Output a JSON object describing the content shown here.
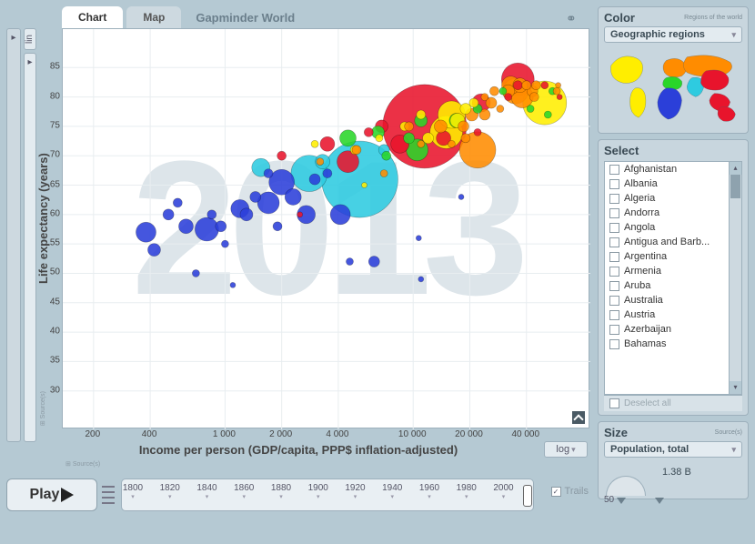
{
  "tabs": {
    "chart": "Chart",
    "map": "Map",
    "brand": "Gapminder World"
  },
  "year": "2013",
  "axes": {
    "x_label": "Income per person (GDP/capita, PPP$ inflation-adjusted)",
    "y_label": "Life expectancy (years)",
    "x_scale": "log",
    "y_scale": "lin",
    "source_label": "Source(s)",
    "x_ticks": [
      200,
      400,
      1000,
      2000,
      4000,
      10000,
      20000,
      40000
    ],
    "x_tick_labels": [
      "200",
      "400",
      "1 000",
      "2 000",
      "4 000",
      "10 000",
      "20 000",
      "40 000"
    ],
    "y_ticks": [
      30,
      35,
      40,
      45,
      50,
      55,
      60,
      65,
      70,
      75,
      80,
      85
    ],
    "xlim": [
      150,
      80000
    ],
    "ylim": [
      25,
      90
    ],
    "grid_color": "#e8edf0"
  },
  "region_colors": {
    "sub_saharan_africa": "#2b3fd9",
    "south_asia": "#2ecbe0",
    "east_asia_pacific": "#e8142c",
    "middle_east_north_africa": "#29d629",
    "america": "#ffee00",
    "europe_central_asia": "#ff8c00"
  },
  "bubbles": [
    {
      "x": 380,
      "y": 57,
      "r": 11,
      "c": "#2b3fd9"
    },
    {
      "x": 420,
      "y": 54,
      "r": 7,
      "c": "#2b3fd9"
    },
    {
      "x": 500,
      "y": 60,
      "r": 6,
      "c": "#2b3fd9"
    },
    {
      "x": 560,
      "y": 62,
      "r": 5,
      "c": "#2b3fd9"
    },
    {
      "x": 620,
      "y": 58,
      "r": 8,
      "c": "#2b3fd9"
    },
    {
      "x": 700,
      "y": 50,
      "r": 4,
      "c": "#2b3fd9"
    },
    {
      "x": 800,
      "y": 57.5,
      "r": 13,
      "c": "#2b3fd9"
    },
    {
      "x": 850,
      "y": 60,
      "r": 5,
      "c": "#2b3fd9"
    },
    {
      "x": 950,
      "y": 58,
      "r": 6,
      "c": "#2b3fd9"
    },
    {
      "x": 1000,
      "y": 55,
      "r": 4,
      "c": "#2b3fd9"
    },
    {
      "x": 1100,
      "y": 48,
      "r": 3,
      "c": "#2b3fd9"
    },
    {
      "x": 1200,
      "y": 61,
      "r": 10,
      "c": "#2b3fd9"
    },
    {
      "x": 1300,
      "y": 60,
      "r": 7,
      "c": "#2b3fd9"
    },
    {
      "x": 1450,
      "y": 63,
      "r": 6,
      "c": "#2b3fd9"
    },
    {
      "x": 1700,
      "y": 62,
      "r": 12,
      "c": "#2b3fd9"
    },
    {
      "x": 1700,
      "y": 67,
      "r": 5,
      "c": "#2b3fd9"
    },
    {
      "x": 1900,
      "y": 58,
      "r": 5,
      "c": "#2b3fd9"
    },
    {
      "x": 2000,
      "y": 65.5,
      "r": 14,
      "c": "#2b3fd9"
    },
    {
      "x": 2300,
      "y": 63,
      "r": 9,
      "c": "#2b3fd9"
    },
    {
      "x": 2700,
      "y": 60,
      "r": 10,
      "c": "#2b3fd9"
    },
    {
      "x": 3000,
      "y": 66,
      "r": 6,
      "c": "#2b3fd9"
    },
    {
      "x": 3500,
      "y": 67,
      "r": 5,
      "c": "#2b3fd9"
    },
    {
      "x": 4100,
      "y": 60,
      "r": 11,
      "c": "#2b3fd9"
    },
    {
      "x": 4600,
      "y": 52,
      "r": 4,
      "c": "#2b3fd9"
    },
    {
      "x": 6200,
      "y": 52,
      "r": 6,
      "c": "#2b3fd9"
    },
    {
      "x": 10700,
      "y": 56,
      "r": 3,
      "c": "#2b3fd9"
    },
    {
      "x": 11000,
      "y": 49,
      "r": 3,
      "c": "#2b3fd9"
    },
    {
      "x": 18000,
      "y": 63,
      "r": 3,
      "c": "#2b3fd9"
    },
    {
      "x": 1550,
      "y": 68,
      "r": 10,
      "c": "#2ecbe0"
    },
    {
      "x": 2800,
      "y": 67,
      "r": 20,
      "c": "#2ecbe0"
    },
    {
      "x": 3300,
      "y": 69,
      "r": 8,
      "c": "#2ecbe0"
    },
    {
      "x": 5200,
      "y": 66,
      "r": 42,
      "c": "#2ecbe0"
    },
    {
      "x": 7000,
      "y": 71,
      "r": 6,
      "c": "#2ecbe0"
    },
    {
      "x": 2000,
      "y": 70,
      "r": 5,
      "c": "#e8142c"
    },
    {
      "x": 2500,
      "y": 60,
      "r": 3,
      "c": "#e8142c"
    },
    {
      "x": 3500,
      "y": 72,
      "r": 8,
      "c": "#e8142c"
    },
    {
      "x": 4500,
      "y": 69,
      "r": 12,
      "c": "#e8142c"
    },
    {
      "x": 5800,
      "y": 74,
      "r": 5,
      "c": "#e8142c"
    },
    {
      "x": 6800,
      "y": 75,
      "r": 7,
      "c": "#e8142c"
    },
    {
      "x": 8500,
      "y": 72,
      "r": 10,
      "c": "#e8142c"
    },
    {
      "x": 11500,
      "y": 75,
      "r": 46,
      "c": "#e8142c"
    },
    {
      "x": 14500,
      "y": 73,
      "r": 8,
      "c": "#e8142c"
    },
    {
      "x": 22000,
      "y": 74,
      "r": 4,
      "c": "#e8142c"
    },
    {
      "x": 23000,
      "y": 79,
      "r": 10,
      "c": "#e8142c"
    },
    {
      "x": 32000,
      "y": 80,
      "r": 4,
      "c": "#e8142c"
    },
    {
      "x": 36000,
      "y": 83,
      "r": 18,
      "c": "#e8142c"
    },
    {
      "x": 36000,
      "y": 82,
      "r": 5,
      "c": "#e8142c"
    },
    {
      "x": 50000,
      "y": 82,
      "r": 4,
      "c": "#e8142c"
    },
    {
      "x": 60000,
      "y": 80,
      "r": 3,
      "c": "#e8142c"
    },
    {
      "x": 4500,
      "y": 73,
      "r": 9,
      "c": "#29d629"
    },
    {
      "x": 6500,
      "y": 74,
      "r": 7,
      "c": "#29d629"
    },
    {
      "x": 7200,
      "y": 70,
      "r": 5,
      "c": "#29d629"
    },
    {
      "x": 9500,
      "y": 73,
      "r": 6,
      "c": "#29d629"
    },
    {
      "x": 10500,
      "y": 71,
      "r": 12,
      "c": "#29d629"
    },
    {
      "x": 11000,
      "y": 76,
      "r": 7,
      "c": "#29d629"
    },
    {
      "x": 17000,
      "y": 76,
      "r": 8,
      "c": "#29d629"
    },
    {
      "x": 22000,
      "y": 78,
      "r": 5,
      "c": "#29d629"
    },
    {
      "x": 30000,
      "y": 81,
      "r": 4,
      "c": "#29d629"
    },
    {
      "x": 42000,
      "y": 78,
      "r": 4,
      "c": "#29d629"
    },
    {
      "x": 52000,
      "y": 77,
      "r": 4,
      "c": "#29d629"
    },
    {
      "x": 55000,
      "y": 81,
      "r": 4,
      "c": "#29d629"
    },
    {
      "x": 3000,
      "y": 72,
      "r": 4,
      "c": "#ffee00"
    },
    {
      "x": 4900,
      "y": 71,
      "r": 5,
      "c": "#ffee00"
    },
    {
      "x": 5500,
      "y": 65,
      "r": 3,
      "c": "#ffee00"
    },
    {
      "x": 6600,
      "y": 73,
      "r": 4,
      "c": "#ffee00"
    },
    {
      "x": 9000,
      "y": 75,
      "r": 5,
      "c": "#ffee00"
    },
    {
      "x": 11000,
      "y": 77,
      "r": 5,
      "c": "#ffee00"
    },
    {
      "x": 12000,
      "y": 73,
      "r": 6,
      "c": "#ffee00"
    },
    {
      "x": 15000,
      "y": 74,
      "r": 18,
      "c": "#ffee00"
    },
    {
      "x": 16000,
      "y": 77,
      "r": 15,
      "c": "#ffee00"
    },
    {
      "x": 17200,
      "y": 76,
      "r": 8,
      "c": "#ffee00"
    },
    {
      "x": 19000,
      "y": 78,
      "r": 6,
      "c": "#ffee00"
    },
    {
      "x": 21000,
      "y": 79,
      "r": 5,
      "c": "#ffee00"
    },
    {
      "x": 50000,
      "y": 79,
      "r": 24,
      "c": "#ffee00"
    },
    {
      "x": 3200,
      "y": 69,
      "r": 4,
      "c": "#ff8c00"
    },
    {
      "x": 5000,
      "y": 71,
      "r": 5,
      "c": "#ff8c00"
    },
    {
      "x": 7000,
      "y": 67,
      "r": 4,
      "c": "#ff8c00"
    },
    {
      "x": 9500,
      "y": 75,
      "r": 5,
      "c": "#ff8c00"
    },
    {
      "x": 11000,
      "y": 72,
      "r": 4,
      "c": "#ff8c00"
    },
    {
      "x": 14000,
      "y": 75,
      "r": 7,
      "c": "#ff8c00"
    },
    {
      "x": 16000,
      "y": 72,
      "r": 4,
      "c": "#ff8c00"
    },
    {
      "x": 18500,
      "y": 75,
      "r": 6,
      "c": "#ff8c00"
    },
    {
      "x": 19000,
      "y": 73,
      "r": 5,
      "c": "#ff8c00"
    },
    {
      "x": 20500,
      "y": 77,
      "r": 7,
      "c": "#ff8c00"
    },
    {
      "x": 22000,
      "y": 71,
      "r": 20,
      "c": "#ff8c00"
    },
    {
      "x": 24000,
      "y": 77,
      "r": 6,
      "c": "#ff8c00"
    },
    {
      "x": 24000,
      "y": 80,
      "r": 4,
      "c": "#ff8c00"
    },
    {
      "x": 26000,
      "y": 79,
      "r": 6,
      "c": "#ff8c00"
    },
    {
      "x": 27000,
      "y": 81,
      "r": 5,
      "c": "#ff8c00"
    },
    {
      "x": 29000,
      "y": 78,
      "r": 4,
      "c": "#ff8c00"
    },
    {
      "x": 32000,
      "y": 81,
      "r": 7,
      "c": "#ff8c00"
    },
    {
      "x": 33000,
      "y": 82,
      "r": 10,
      "c": "#ff8c00"
    },
    {
      "x": 35000,
      "y": 81,
      "r": 14,
      "c": "#ff8c00"
    },
    {
      "x": 37000,
      "y": 82,
      "r": 8,
      "c": "#ff8c00"
    },
    {
      "x": 38000,
      "y": 80,
      "r": 12,
      "c": "#ff8c00"
    },
    {
      "x": 40000,
      "y": 82,
      "r": 5,
      "c": "#ff8c00"
    },
    {
      "x": 43000,
      "y": 81,
      "r": 6,
      "c": "#ff8c00"
    },
    {
      "x": 44000,
      "y": 80,
      "r": 5,
      "c": "#ff8c00"
    },
    {
      "x": 45000,
      "y": 82,
      "r": 5,
      "c": "#ff8c00"
    },
    {
      "x": 58000,
      "y": 81,
      "r": 4,
      "c": "#ff8c00"
    },
    {
      "x": 59000,
      "y": 82,
      "r": 3,
      "c": "#ff8c00"
    }
  ],
  "play": {
    "label": "Play",
    "timeline_ticks": [
      1800,
      1820,
      1840,
      1860,
      1880,
      1900,
      1920,
      1940,
      1960,
      1980,
      2000
    ],
    "timeline_range": [
      1800,
      2013
    ],
    "current_year": 2013,
    "trails_label": "Trails",
    "trails_checked": true
  },
  "color_panel": {
    "title": "Color",
    "subtitle": "Regions of the world",
    "selector": "Geographic regions"
  },
  "select_panel": {
    "title": "Select",
    "countries": [
      "Afghanistan",
      "Albania",
      "Algeria",
      "Andorra",
      "Angola",
      "Antigua and Barb...",
      "Argentina",
      "Armenia",
      "Aruba",
      "Australia",
      "Austria",
      "Azerbaijan",
      "Bahamas"
    ],
    "deselect_label": "Deselect all"
  },
  "size_panel": {
    "title": "Size",
    "subtitle": "Source(s)",
    "selector": "Population, total",
    "min_label": "50",
    "max_label": "1.38 B"
  }
}
